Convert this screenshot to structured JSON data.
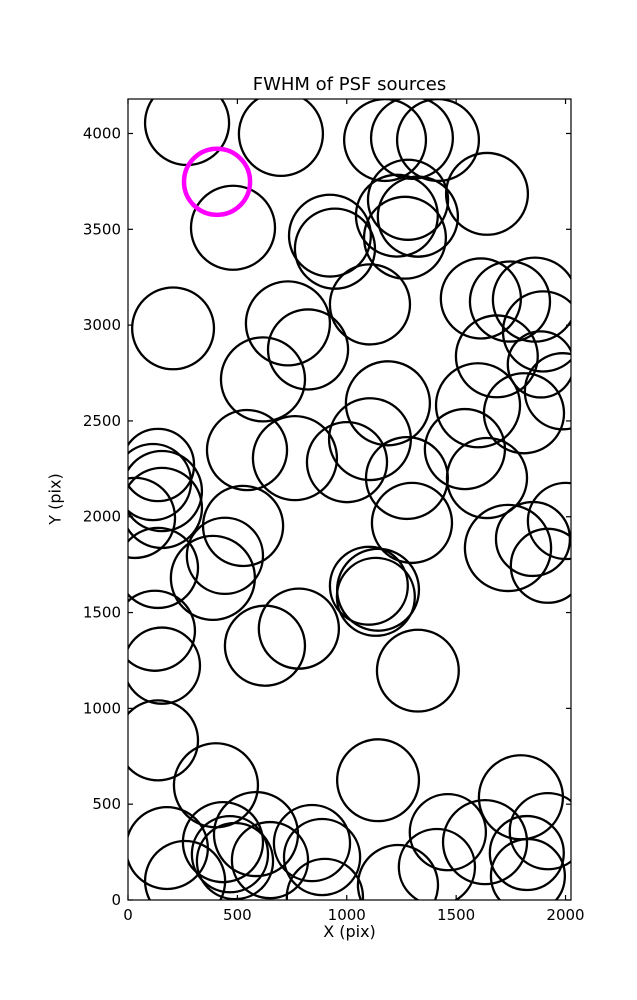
{
  "title": "FWHM of PSF sources",
  "chart_data": {
    "type": "scatter",
    "title": "FWHM of PSF sources",
    "xlabel": "X (pix)",
    "ylabel": "Y (pix)",
    "xlim": [
      0,
      2025
    ],
    "ylim": [
      0,
      4180
    ],
    "xticks": [
      0,
      500,
      1000,
      1500,
      2000
    ],
    "yticks": [
      0,
      500,
      1000,
      1500,
      2000,
      2500,
      3000,
      3500,
      4000
    ],
    "grid": false,
    "legend_position": "none",
    "marker": "open-circle",
    "circle_color": "#000000",
    "highlight_color": "#ff00ff",
    "sources": [
      {
        "x": 270,
        "y": 4055,
        "r": 192
      },
      {
        "x": 699,
        "y": 3998,
        "r": 192
      },
      {
        "x": 1175,
        "y": 3966,
        "r": 187
      },
      {
        "x": 1298,
        "y": 3977,
        "r": 187
      },
      {
        "x": 1417,
        "y": 3966,
        "r": 187
      },
      {
        "x": 480,
        "y": 3508,
        "r": 192
      },
      {
        "x": 1641,
        "y": 3685,
        "r": 187
      },
      {
        "x": 1280,
        "y": 3654,
        "r": 183
      },
      {
        "x": 1229,
        "y": 3571,
        "r": 187
      },
      {
        "x": 1325,
        "y": 3566,
        "r": 183
      },
      {
        "x": 1266,
        "y": 3456,
        "r": 187
      },
      {
        "x": 923,
        "y": 3467,
        "r": 187
      },
      {
        "x": 946,
        "y": 3399,
        "r": 183
      },
      {
        "x": 206,
        "y": 2983,
        "r": 187
      },
      {
        "x": 731,
        "y": 3009,
        "r": 192
      },
      {
        "x": 823,
        "y": 2873,
        "r": 183
      },
      {
        "x": 617,
        "y": 2717,
        "r": 192
      },
      {
        "x": 1106,
        "y": 3108,
        "r": 183
      },
      {
        "x": 1613,
        "y": 3139,
        "r": 183
      },
      {
        "x": 1746,
        "y": 3123,
        "r": 183
      },
      {
        "x": 1860,
        "y": 3133,
        "r": 192
      },
      {
        "x": 1897,
        "y": 2967,
        "r": 183
      },
      {
        "x": 1686,
        "y": 2837,
        "r": 187
      },
      {
        "x": 1887,
        "y": 2795,
        "r": 151
      },
      {
        "x": 1988,
        "y": 2655,
        "r": 174
      },
      {
        "x": 1188,
        "y": 2592,
        "r": 192
      },
      {
        "x": 1106,
        "y": 2405,
        "r": 187
      },
      {
        "x": 1600,
        "y": 2582,
        "r": 192
      },
      {
        "x": 1810,
        "y": 2540,
        "r": 183
      },
      {
        "x": 544,
        "y": 2348,
        "r": 183
      },
      {
        "x": 763,
        "y": 2306,
        "r": 192
      },
      {
        "x": 1001,
        "y": 2285,
        "r": 183
      },
      {
        "x": 137,
        "y": 2270,
        "r": 165
      },
      {
        "x": 114,
        "y": 2181,
        "r": 174
      },
      {
        "x": 155,
        "y": 2134,
        "r": 183
      },
      {
        "x": 155,
        "y": 2046,
        "r": 183
      },
      {
        "x": 32,
        "y": 1994,
        "r": 183
      },
      {
        "x": 526,
        "y": 1952,
        "r": 183
      },
      {
        "x": 443,
        "y": 1796,
        "r": 174
      },
      {
        "x": 388,
        "y": 1681,
        "r": 192
      },
      {
        "x": 137,
        "y": 1733,
        "r": 183
      },
      {
        "x": 1101,
        "y": 1640,
        "r": 178
      },
      {
        "x": 1143,
        "y": 1619,
        "r": 187
      },
      {
        "x": 1133,
        "y": 1582,
        "r": 178
      },
      {
        "x": 1298,
        "y": 1968,
        "r": 183
      },
      {
        "x": 1275,
        "y": 2202,
        "r": 187
      },
      {
        "x": 123,
        "y": 1405,
        "r": 183
      },
      {
        "x": 155,
        "y": 1223,
        "r": 174
      },
      {
        "x": 626,
        "y": 1327,
        "r": 183
      },
      {
        "x": 781,
        "y": 1416,
        "r": 183
      },
      {
        "x": 1325,
        "y": 1197,
        "r": 187
      },
      {
        "x": 137,
        "y": 833,
        "r": 183
      },
      {
        "x": 402,
        "y": 599,
        "r": 192
      },
      {
        "x": 1143,
        "y": 625,
        "r": 187
      },
      {
        "x": 1796,
        "y": 536,
        "r": 192
      },
      {
        "x": 1737,
        "y": 1837,
        "r": 197
      },
      {
        "x": 1851,
        "y": 1884,
        "r": 169
      },
      {
        "x": 1919,
        "y": 1744,
        "r": 169
      },
      {
        "x": 2002,
        "y": 1978,
        "r": 174
      },
      {
        "x": 1641,
        "y": 2202,
        "r": 183
      },
      {
        "x": 1540,
        "y": 2353,
        "r": 183
      },
      {
        "x": 178,
        "y": 271,
        "r": 187
      },
      {
        "x": 261,
        "y": 99,
        "r": 183
      },
      {
        "x": 434,
        "y": 302,
        "r": 183
      },
      {
        "x": 466,
        "y": 239,
        "r": 174
      },
      {
        "x": 489,
        "y": 203,
        "r": 174
      },
      {
        "x": 585,
        "y": 344,
        "r": 192
      },
      {
        "x": 649,
        "y": 208,
        "r": 174
      },
      {
        "x": 841,
        "y": 297,
        "r": 174
      },
      {
        "x": 887,
        "y": 224,
        "r": 174
      },
      {
        "x": 900,
        "y": 16,
        "r": 174
      },
      {
        "x": 1234,
        "y": 78,
        "r": 183
      },
      {
        "x": 1462,
        "y": 354,
        "r": 174
      },
      {
        "x": 1632,
        "y": 302,
        "r": 192
      },
      {
        "x": 1412,
        "y": 172,
        "r": 174
      },
      {
        "x": 1823,
        "y": 245,
        "r": 169
      },
      {
        "x": 1919,
        "y": 359,
        "r": 174
      },
      {
        "x": 1828,
        "y": 125,
        "r": 169
      }
    ],
    "highlighted_source": {
      "x": 407,
      "y": 3748,
      "r": 151
    }
  }
}
